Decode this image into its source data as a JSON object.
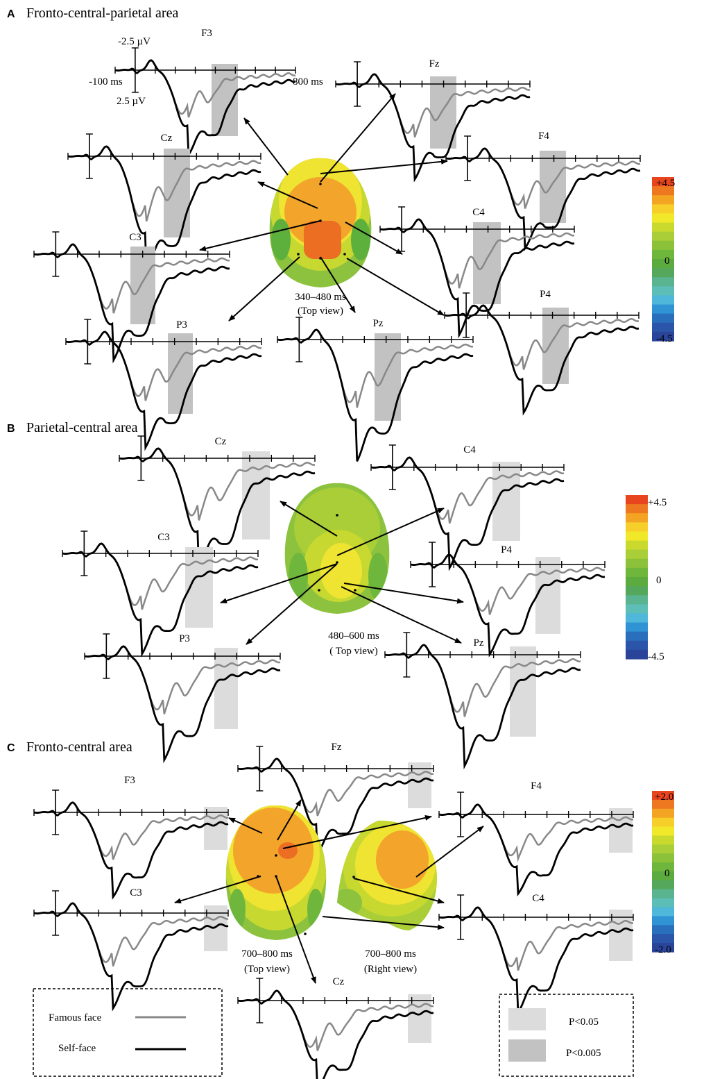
{
  "panels": {
    "A": {
      "letter": "A",
      "title": "Fronto-central-parietal area"
    },
    "B": {
      "letter": "B",
      "title": "Parietal-central area"
    },
    "C": {
      "letter": "C",
      "title": "Fronto-central area"
    }
  },
  "scale": {
    "neg_uv": "-2.5 µV",
    "pos_uv": "2.5 µV",
    "start_ms": "-100 ms",
    "end_ms": "800 ms"
  },
  "maps": {
    "A": {
      "time": "340–480 ms",
      "view": "(Top view)"
    },
    "B": {
      "time": "480–600 ms",
      "view": "( Top view)"
    },
    "C_top": {
      "time": "700–800 ms",
      "view": "(Top view)"
    },
    "C_right": {
      "time": "700–800 ms",
      "view": "(Right view)"
    }
  },
  "colorbars": {
    "A": {
      "max": "+4.5",
      "mid": "0",
      "min": "-4.5"
    },
    "B": {
      "max": "+4.5",
      "mid": "0",
      "min": "-4.5"
    },
    "C": {
      "max": "+2.0",
      "mid": "0",
      "min": "-2.0"
    }
  },
  "colorscale": [
    "#e8441e",
    "#ee7820",
    "#f3a423",
    "#f6cf2a",
    "#f1e82a",
    "#c9d92e",
    "#a9ce37",
    "#8cc13a",
    "#6fb63d",
    "#5cab3f",
    "#55a85b",
    "#5ab490",
    "#5dbdb7",
    "#4fb7d9",
    "#2f93d4",
    "#2a6fbb",
    "#2a55a8",
    "#2a449a"
  ],
  "topomap_colors": {
    "orange_red": "#eb6e23",
    "orange": "#f2a52a",
    "yellow": "#f0e432",
    "yellowgreen": "#c7d831",
    "green": "#8dc23f",
    "darkgreen": "#5eb03d"
  },
  "legend_lines": {
    "famous": "Famous face",
    "self": "Self-face",
    "famous_color": "#888888",
    "self_color": "#000000"
  },
  "legend_sig": {
    "p05": "P<0.05",
    "p005": "P<0.005",
    "p05_color": "#dcdcdc",
    "p005_color": "#c2c2c2"
  },
  "electrodes": {
    "A": [
      "F3",
      "Fz",
      "Cz",
      "F4",
      "C3",
      "C4",
      "P4",
      "P3",
      "Pz"
    ],
    "B": [
      "Cz",
      "C4",
      "C3",
      "P4",
      "P3",
      "Pz"
    ],
    "C": [
      "Fz",
      "F3",
      "F4",
      "C3",
      "C4",
      "Cz"
    ]
  }
}
